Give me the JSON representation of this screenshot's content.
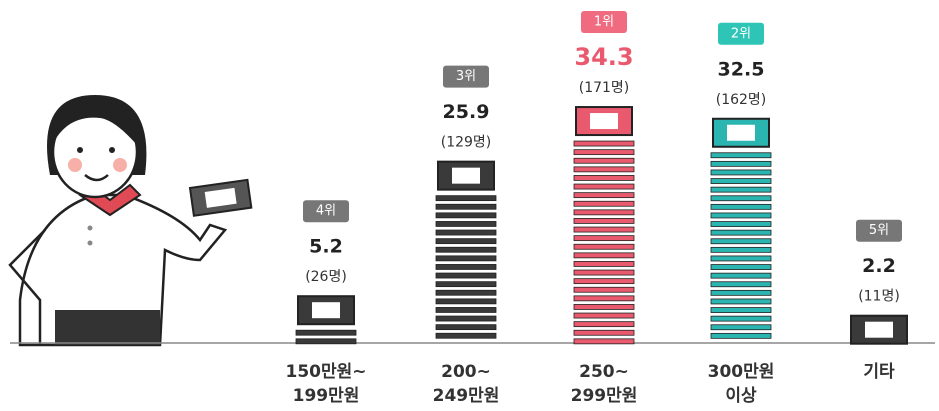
{
  "chart_data": {
    "type": "bar",
    "categories": [
      [
        "150만원~",
        "199만원"
      ],
      [
        "200~",
        "249만원"
      ],
      [
        "250~",
        "299만원"
      ],
      [
        "300만원",
        "이상"
      ],
      [
        "기타"
      ]
    ],
    "values": [
      5.2,
      25.9,
      34.3,
      32.5,
      2.2
    ],
    "count_labels": [
      "(26명)",
      "(129명)",
      "(171명)",
      "(162명)",
      "(11명)"
    ],
    "ranks": [
      "4위",
      "3위",
      "1위",
      "2위",
      "5위"
    ],
    "colors": [
      "#3a3a3a",
      "#3a3a3a",
      "#ea5a6e",
      "#2bb5b0",
      "#3a3a3a"
    ],
    "badge_colors": [
      "#777777",
      "#777777",
      "#f06b80",
      "#2ec4b6",
      "#777777"
    ],
    "value_colors": [
      "#222222",
      "#222222",
      "#ea5a6e",
      "#222222",
      "#222222"
    ]
  }
}
